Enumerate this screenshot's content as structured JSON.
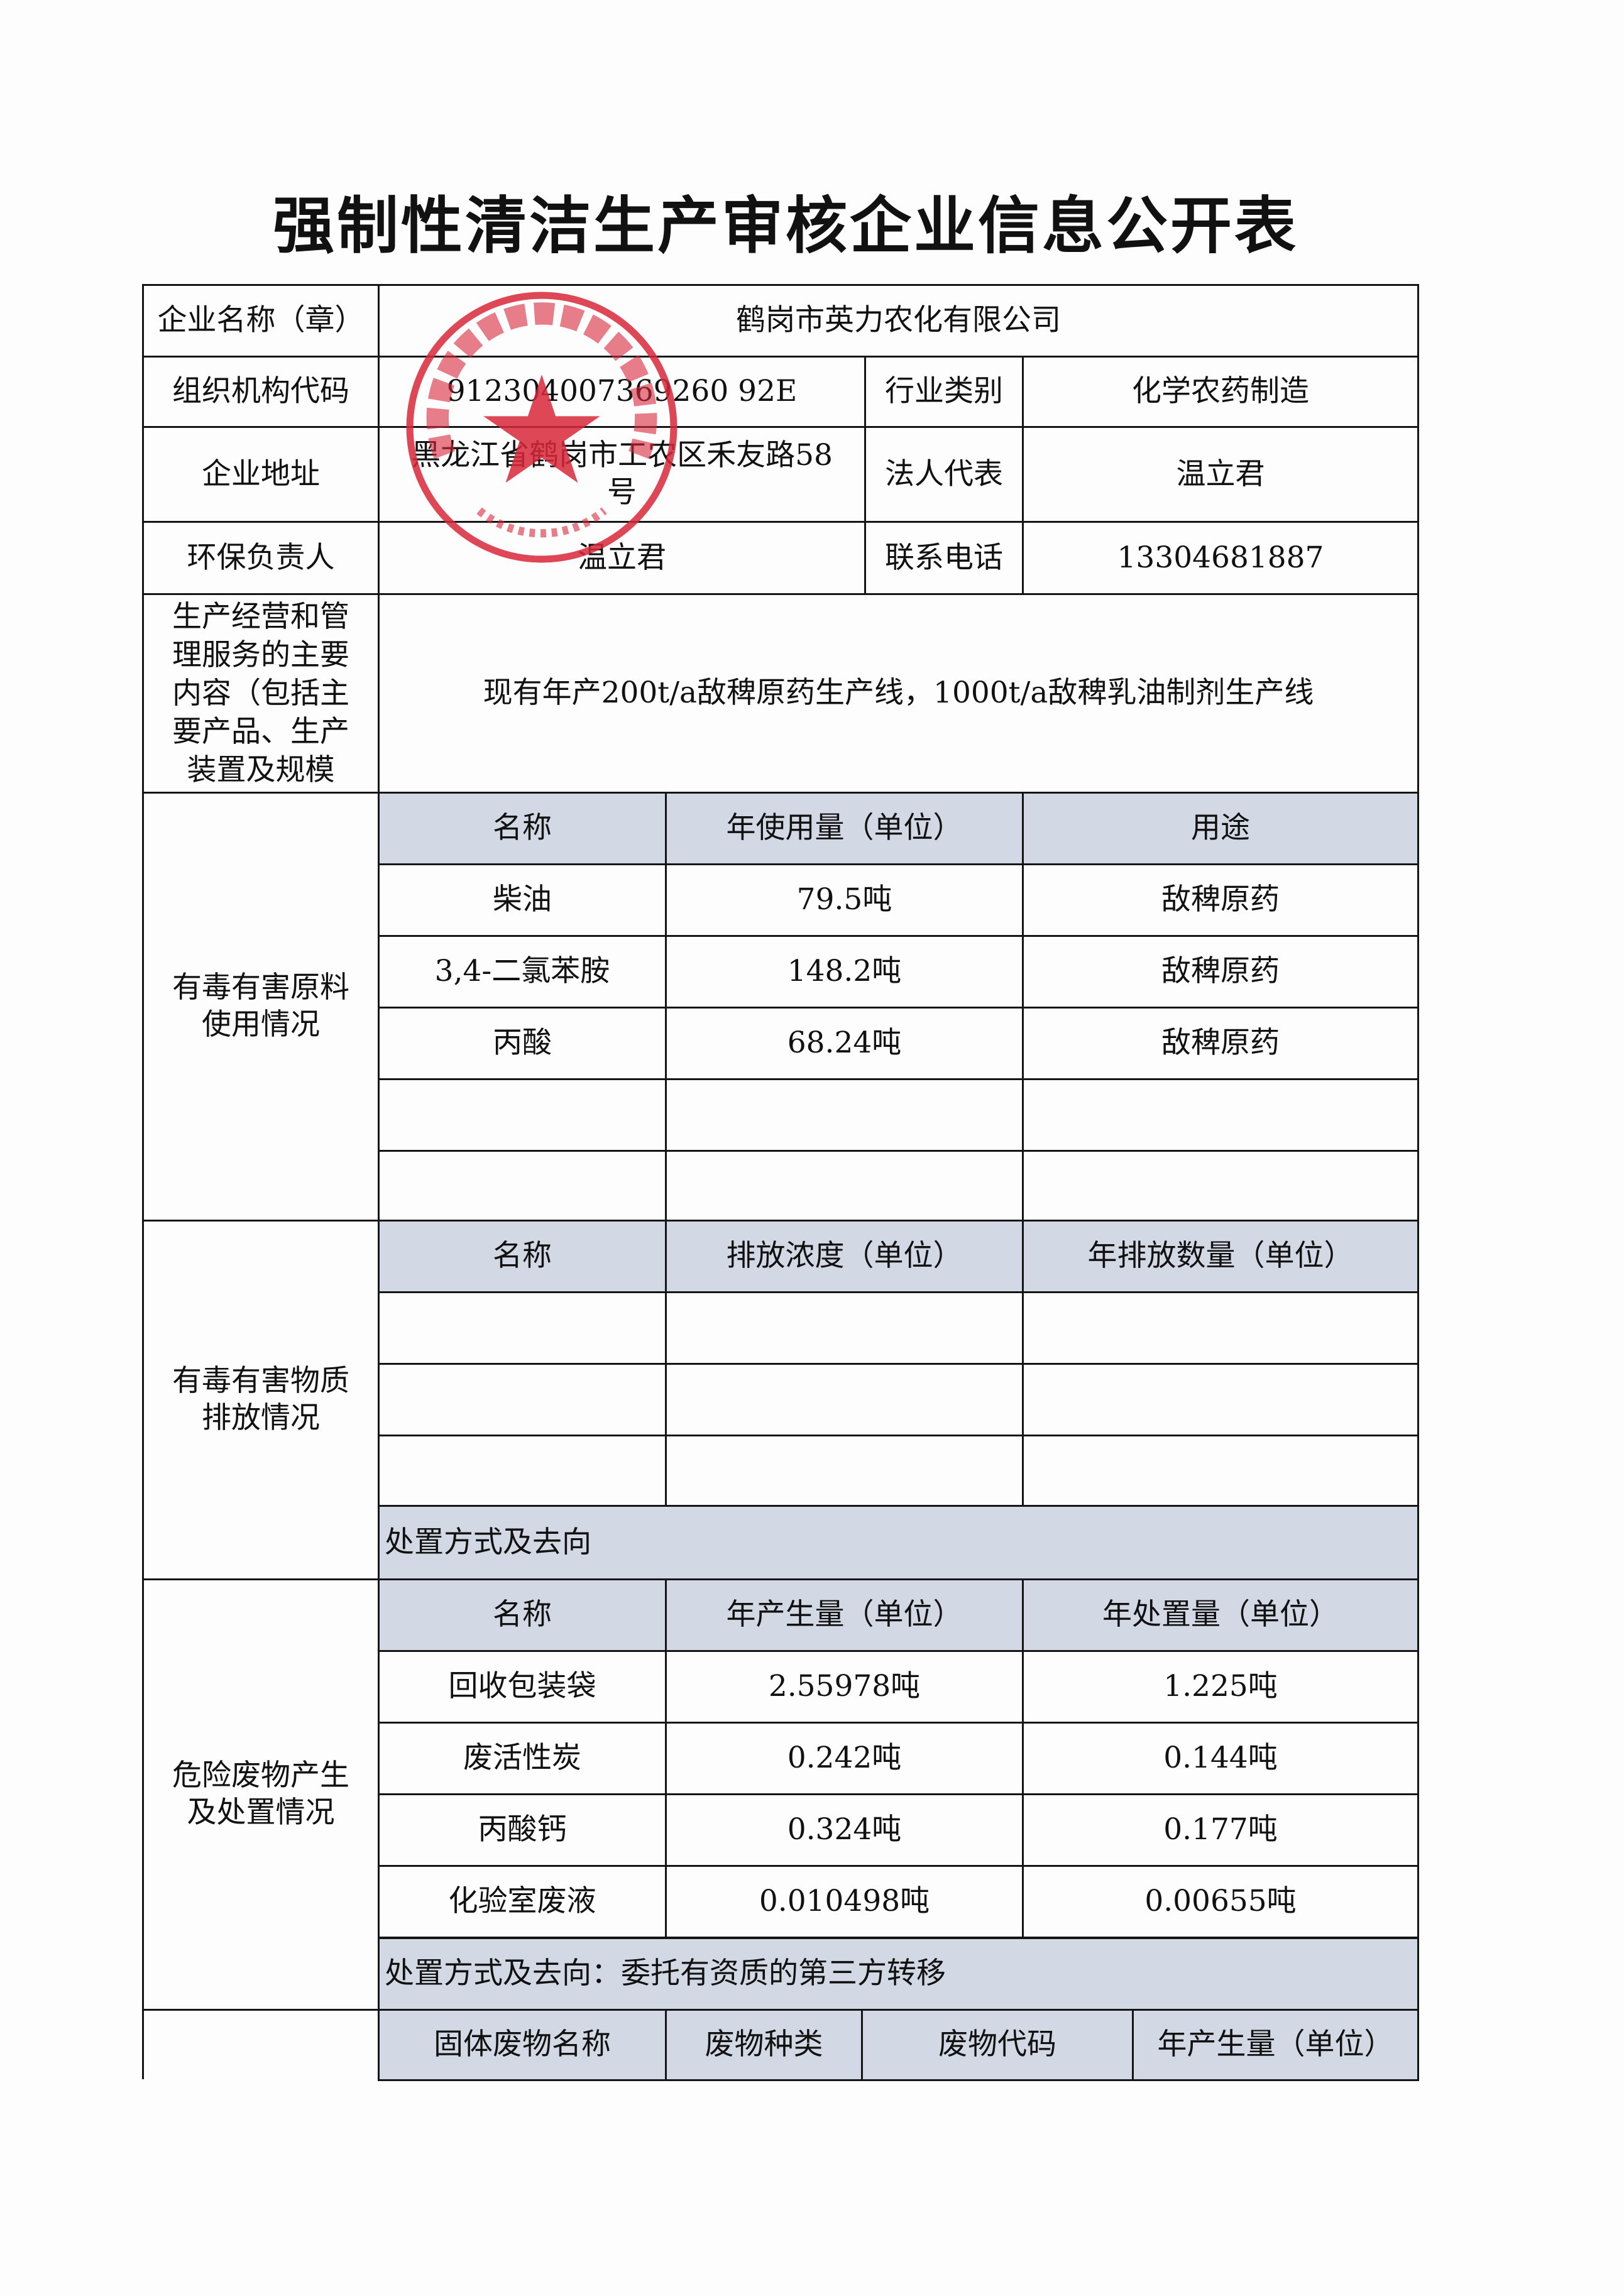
{
  "title": "强制性清洁生产审核企业信息公开表",
  "basic": {
    "company_label": "企业名称（章）",
    "company": "鹤岗市英力农化有限公司",
    "code_label": "组织机构代码",
    "code": "912304007369260 92E",
    "industry_label": "行业类别",
    "industry": "化学农药制造",
    "address_label": "企业地址",
    "address": "黑龙江省鹤岗市工农区禾友路58号",
    "legal_label": "法人代表",
    "legal": "温立君",
    "env_label": "环保负责人",
    "env": "温立君",
    "phone_label": "联系电话",
    "phone": "13304681887",
    "business_label": "生产经营和管理服务的主要内容（包括主要产品、生产装置及规模",
    "business": "现有年产200t/a敌稗原药生产线，1000t/a敌稗乳油制剂生产线"
  },
  "raw": {
    "label": "有毒有害原料使用情况",
    "headers": [
      "名称",
      "年使用量（单位）",
      "用途"
    ],
    "rows": [
      [
        "柴油",
        "79.5吨",
        "敌稗原药"
      ],
      [
        "3,4-二氯苯胺",
        "148.2吨",
        "敌稗原药"
      ],
      [
        "丙酸",
        "68.24吨",
        "敌稗原药"
      ],
      [
        "",
        "",
        ""
      ],
      [
        "",
        "",
        ""
      ]
    ]
  },
  "emission": {
    "label": "有毒有害物质排放情况",
    "headers": [
      "名称",
      "排放浓度（单位）",
      "年排放数量（单位）"
    ],
    "rows": [
      [
        "",
        "",
        ""
      ],
      [
        "",
        "",
        ""
      ],
      [
        "",
        "",
        ""
      ]
    ],
    "disposal": "处置方式及去向"
  },
  "hazard": {
    "label": "危险废物产生及处置情况",
    "headers": [
      "名称",
      "年产生量（单位）",
      "年处置量（单位）"
    ],
    "rows": [
      [
        "回收包装袋",
        "2.55978吨",
        "1.225吨"
      ],
      [
        "废活性炭",
        "0.242吨",
        "0.144吨"
      ],
      [
        "丙酸钙",
        "0.324吨",
        "0.177吨"
      ],
      [
        "化验室废液",
        "0.010498吨",
        "0.00655吨"
      ]
    ],
    "disposal": "处置方式及去向：委托有资质的第三方转移"
  },
  "solid": {
    "headers": [
      "固体废物名称",
      "废物种类",
      "废物代码",
      "年产生量（单位）"
    ]
  },
  "stamp": {
    "text": "鹤岗市英力农化有限公司",
    "number": "2304010069 95",
    "color": "#d8283a"
  }
}
